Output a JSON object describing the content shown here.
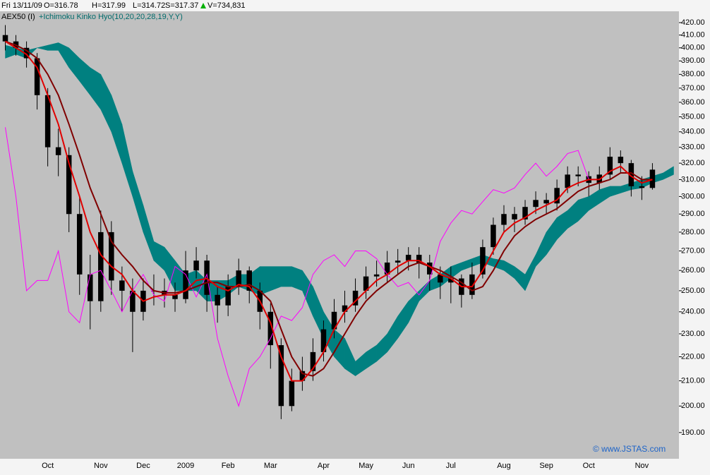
{
  "header": {
    "date": "Fri 13/11/09",
    "open": "O=316.78",
    "high": "H=317.99",
    "low": "L=314.72",
    "settle": "S=317.37",
    "volume": "V=734,831",
    "symbol": "AEX50 (I)",
    "indicator": "+Ichimoku Kinko Hyo(10,20,20,28,19,Y,Y)",
    "watermark": "© www.JSTAS.com"
  },
  "chart_data": {
    "type": "candlestick",
    "log_scale": true,
    "grid": false,
    "categories": [
      null,
      null,
      null,
      null,
      "Oct",
      null,
      null,
      null,
      null,
      "Nov",
      null,
      null,
      null,
      "Dec",
      null,
      null,
      null,
      "2009",
      null,
      null,
      null,
      "Feb",
      null,
      null,
      null,
      "Mar",
      null,
      null,
      null,
      null,
      "Apr",
      null,
      null,
      null,
      "May",
      null,
      null,
      null,
      "Jun",
      null,
      null,
      null,
      "Jul",
      null,
      null,
      null,
      null,
      "Aug",
      null,
      null,
      null,
      "Sep",
      null,
      null,
      null,
      "Oct",
      null,
      null,
      null,
      null,
      "Nov",
      null,
      null,
      null
    ],
    "ylim": [
      180.6,
      429.3
    ],
    "yticks": [
      {
        "value": 190,
        "label": "190.00"
      },
      {
        "value": 200,
        "label": "200.00"
      },
      {
        "value": 210,
        "label": "210.00"
      },
      {
        "value": 220,
        "label": "220.00"
      },
      {
        "value": 230,
        "label": "230.00"
      },
      {
        "value": 240,
        "label": "240.00"
      },
      {
        "value": 250,
        "label": "250.00"
      },
      {
        "value": 260,
        "label": "260.00"
      },
      {
        "value": 270,
        "label": "270.00"
      },
      {
        "value": 280,
        "label": "280.00"
      },
      {
        "value": 290,
        "label": "290.00"
      },
      {
        "value": 300,
        "label": "300.00"
      },
      {
        "value": 310,
        "label": "310.00"
      },
      {
        "value": 320,
        "label": "320.00"
      },
      {
        "value": 330,
        "label": "330.00"
      },
      {
        "value": 340,
        "label": "340.00"
      },
      {
        "value": 350,
        "label": "350.00"
      },
      {
        "value": 360,
        "label": "360.00"
      },
      {
        "value": 370,
        "label": "370.00"
      },
      {
        "value": 380,
        "label": "380.00"
      },
      {
        "value": 390,
        "label": "390.00"
      },
      {
        "value": 400,
        "label": "400.00"
      },
      {
        "value": 410,
        "label": "410.00"
      },
      {
        "value": 420,
        "label": "420.00"
      }
    ],
    "candles": {
      "color": "#000000",
      "open": [
        410,
        405,
        400,
        392,
        365,
        330,
        325,
        290,
        258,
        245,
        280,
        255,
        250,
        240,
        250,
        250,
        248,
        246,
        260,
        265,
        248,
        243,
        252,
        260,
        250,
        240,
        225,
        200,
        210,
        214,
        222,
        232,
        240,
        243,
        250,
        257,
        258,
        264,
        265,
        268,
        264,
        258,
        254,
        256,
        248,
        258,
        272,
        284,
        290,
        287,
        294,
        298,
        296,
        305,
        313,
        312,
        308,
        313,
        324,
        320,
        306,
        305,
        null,
        null
      ],
      "high": [
        418,
        410,
        405,
        396,
        370,
        342,
        330,
        300,
        268,
        292,
        286,
        262,
        256,
        256,
        258,
        256,
        254,
        270,
        272,
        268,
        252,
        258,
        266,
        262,
        254,
        244,
        228,
        215,
        220,
        228,
        236,
        246,
        250,
        256,
        262,
        265,
        270,
        271,
        272,
        272,
        268,
        262,
        262,
        258,
        264,
        276,
        288,
        295,
        294,
        298,
        303,
        302,
        310,
        318,
        318,
        315,
        318,
        330,
        328,
        322,
        312,
        320,
        null,
        null
      ],
      "low": [
        398,
        394,
        385,
        355,
        318,
        312,
        280,
        248,
        232,
        240,
        248,
        240,
        222,
        236,
        243,
        242,
        240,
        244,
        256,
        240,
        235,
        238,
        248,
        244,
        232,
        215,
        195,
        198,
        206,
        210,
        218,
        228,
        235,
        240,
        246,
        252,
        254,
        258,
        260,
        256,
        250,
        246,
        244,
        242,
        246,
        256,
        268,
        280,
        280,
        284,
        290,
        290,
        292,
        302,
        306,
        300,
        304,
        310,
        314,
        300,
        298,
        304,
        null,
        null
      ],
      "close": [
        405,
        400,
        392,
        365,
        330,
        325,
        290,
        258,
        245,
        280,
        255,
        250,
        240,
        250,
        250,
        248,
        246,
        260,
        265,
        248,
        243,
        252,
        260,
        250,
        240,
        225,
        200,
        210,
        214,
        222,
        232,
        240,
        243,
        250,
        257,
        258,
        264,
        265,
        268,
        264,
        258,
        254,
        256,
        248,
        258,
        272,
        284,
        290,
        287,
        294,
        298,
        296,
        305,
        313,
        312,
        308,
        313,
        324,
        320,
        306,
        305,
        316,
        null,
        null
      ]
    },
    "cloud": {
      "color": "#008080",
      "upper": [
        402,
        400,
        398,
        400,
        402,
        404,
        400,
        392,
        385,
        380,
        365,
        345,
        315,
        295,
        275,
        272,
        265,
        258,
        260,
        255,
        255,
        255,
        258,
        258,
        262,
        262,
        262,
        262,
        260,
        252,
        240,
        232,
        228,
        218,
        222,
        225,
        230,
        238,
        245,
        250,
        255,
        258,
        262,
        264,
        266,
        268,
        266,
        265,
        262,
        258,
        268,
        280,
        288,
        292,
        298,
        300,
        304,
        306,
        306,
        308,
        310,
        312,
        314,
        318
      ],
      "lower": [
        392,
        395,
        392,
        400,
        398,
        398,
        385,
        375,
        365,
        355,
        340,
        320,
        300,
        280,
        265,
        260,
        250,
        250,
        250,
        245,
        245,
        248,
        252,
        250,
        248,
        250,
        252,
        252,
        250,
        238,
        228,
        220,
        215,
        212,
        215,
        218,
        222,
        228,
        235,
        245,
        250,
        252,
        256,
        260,
        262,
        264,
        262,
        260,
        256,
        250,
        262,
        268,
        276,
        282,
        286,
        292,
        296,
        300,
        302,
        304,
        305,
        308,
        310,
        313
      ]
    },
    "lines": [
      {
        "color": "#ff00ff",
        "width": 1,
        "values": [
          343,
          300,
          250,
          255,
          255,
          270,
          240,
          235,
          258,
          260,
          250,
          240,
          250,
          258,
          248,
          245,
          262,
          258,
          247,
          258,
          228,
          212,
          200,
          215,
          220,
          228,
          238,
          236,
          242,
          258,
          265,
          268,
          262,
          270,
          270,
          266,
          258,
          252,
          254,
          248,
          255,
          275,
          285,
          292,
          290,
          297,
          304,
          302,
          305,
          313,
          320,
          312,
          318,
          326,
          328,
          310,
          null,
          null,
          null,
          null,
          null,
          null,
          null,
          null
        ]
      },
      {
        "color": "#800000",
        "width": 2,
        "values": [
          405,
          402,
          398,
          392,
          380,
          365,
          345,
          325,
          305,
          290,
          275,
          268,
          262,
          255,
          250,
          249,
          249,
          250,
          252,
          254,
          254,
          252,
          252,
          253,
          250,
          245,
          232,
          220,
          213,
          212,
          215,
          222,
          230,
          238,
          245,
          250,
          254,
          258,
          262,
          264,
          262,
          260,
          257,
          254,
          250,
          252,
          260,
          270,
          278,
          283,
          287,
          290,
          293,
          298,
          303,
          306,
          308,
          310,
          314,
          314,
          310,
          310,
          null,
          null
        ]
      },
      {
        "color": "#e00000",
        "width": 2,
        "values": [
          405,
          400,
          395,
          385,
          365,
          345,
          320,
          300,
          280,
          268,
          262,
          258,
          250,
          245,
          247,
          248,
          248,
          250,
          255,
          256,
          252,
          250,
          253,
          252,
          245,
          235,
          220,
          210,
          210,
          215,
          222,
          232,
          240,
          245,
          250,
          255,
          258,
          262,
          265,
          265,
          262,
          258,
          256,
          252,
          252,
          260,
          270,
          280,
          285,
          288,
          292,
          295,
          298,
          305,
          308,
          310,
          310,
          315,
          318,
          312,
          308,
          310,
          null,
          null
        ]
      }
    ]
  }
}
